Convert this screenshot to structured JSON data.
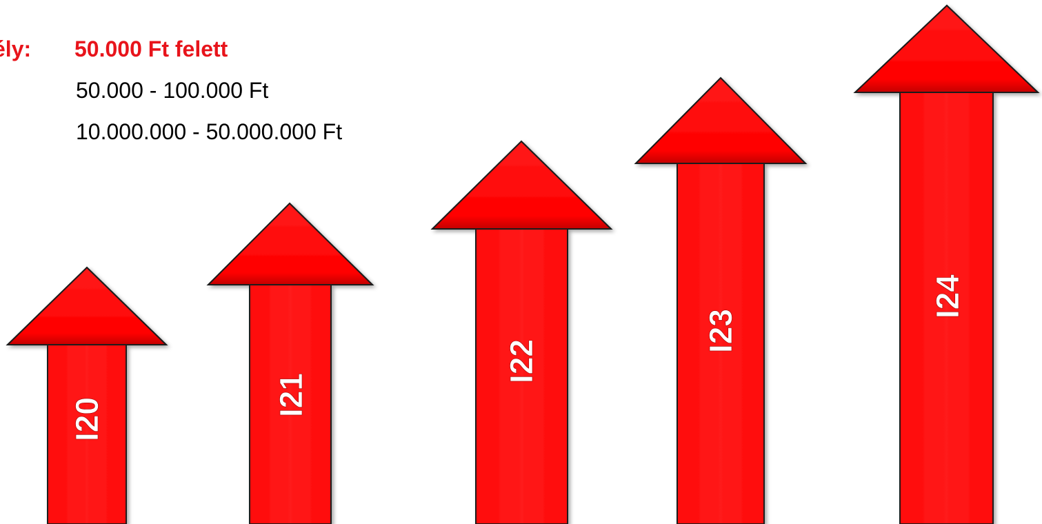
{
  "header": {
    "prefix": "ély:",
    "threshold": "50.000 Ft felett",
    "ranges": [
      "50.000 - 100.000 Ft",
      "10.000.000 - 50.000.000 Ft"
    ]
  },
  "arrows": [
    {
      "label": "I20"
    },
    {
      "label": "I21"
    },
    {
      "label": "I22"
    },
    {
      "label": "I23"
    },
    {
      "label": "I24"
    }
  ],
  "colors": {
    "arrow_fill": "#ff0000",
    "arrow_dark": "#b30000",
    "highlight_text": "#e8141b",
    "label_text": "#ffffff"
  }
}
